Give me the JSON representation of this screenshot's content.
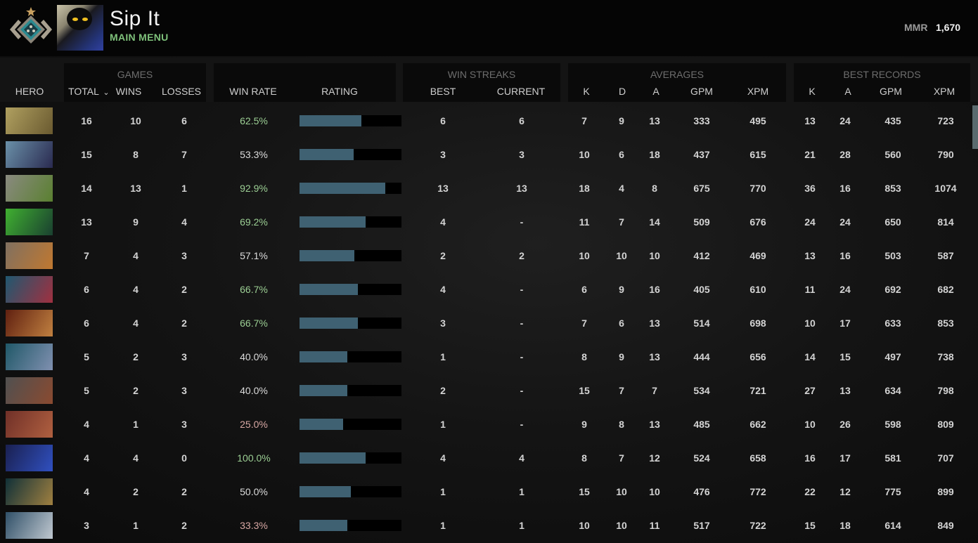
{
  "header": {
    "player_name": "Sip It",
    "subtitle": "MAIN MENU",
    "mmr_label": "MMR",
    "mmr_value": "1,670"
  },
  "groups": {
    "games": "GAMES",
    "win_streaks": "WIN STREAKS",
    "averages": "AVERAGES",
    "best_records": "BEST RECORDS"
  },
  "columns": {
    "hero": "HERO",
    "total": "TOTAL",
    "sort_icon": "chevron-down-icon",
    "wins": "WINS",
    "losses": "LOSSES",
    "win_rate": "WIN RATE",
    "rating": "RATING",
    "best": "BEST",
    "current": "CURRENT",
    "avg_k": "K",
    "avg_d": "D",
    "avg_a": "A",
    "avg_gpm": "GPM",
    "avg_xpm": "XPM",
    "best_k": "K",
    "best_a": "A",
    "best_gpm": "GPM",
    "best_xpm": "XPM"
  },
  "colors": {
    "win_high": "#9ccf94",
    "win_mid": "#dcdcdc",
    "win_low": "#d8a8a4",
    "rating_fill": "#3f6172",
    "accent": "#7ec07a"
  },
  "rows": [
    {
      "total": "16",
      "wins": "10",
      "losses": "6",
      "win_rate": "62.5%",
      "rating": 0.61,
      "best": "6",
      "current": "6",
      "k": "7",
      "d": "9",
      "a": "13",
      "gpm": "333",
      "xpm": "495",
      "bk": "13",
      "ba": "24",
      "bgpm": "435",
      "bxpm": "723",
      "portrait": [
        "#b0a060",
        "#6a5a30"
      ]
    },
    {
      "total": "15",
      "wins": "8",
      "losses": "7",
      "win_rate": "53.3%",
      "rating": 0.53,
      "best": "3",
      "current": "3",
      "k": "10",
      "d": "6",
      "a": "18",
      "gpm": "437",
      "xpm": "615",
      "bk": "21",
      "ba": "28",
      "bgpm": "560",
      "bxpm": "790",
      "portrait": [
        "#6a90a8",
        "#2a2a50"
      ]
    },
    {
      "total": "14",
      "wins": "13",
      "losses": "1",
      "win_rate": "92.9%",
      "rating": 0.84,
      "best": "13",
      "current": "13",
      "k": "18",
      "d": "4",
      "a": "8",
      "gpm": "675",
      "xpm": "770",
      "bk": "36",
      "ba": "16",
      "bgpm": "853",
      "bxpm": "1074",
      "portrait": [
        "#8a8a80",
        "#5a8030"
      ]
    },
    {
      "total": "13",
      "wins": "9",
      "losses": "4",
      "win_rate": "69.2%",
      "rating": 0.65,
      "best": "4",
      "current": "-",
      "k": "11",
      "d": "7",
      "a": "14",
      "gpm": "509",
      "xpm": "676",
      "bk": "24",
      "ba": "24",
      "bgpm": "650",
      "bxpm": "814",
      "portrait": [
        "#40b030",
        "#1a4030"
      ]
    },
    {
      "total": "7",
      "wins": "4",
      "losses": "3",
      "win_rate": "57.1%",
      "rating": 0.54,
      "best": "2",
      "current": "2",
      "k": "10",
      "d": "10",
      "a": "10",
      "gpm": "412",
      "xpm": "469",
      "bk": "13",
      "ba": "16",
      "bgpm": "503",
      "bxpm": "587",
      "portrait": [
        "#807060",
        "#c07830"
      ]
    },
    {
      "total": "6",
      "wins": "4",
      "losses": "2",
      "win_rate": "66.7%",
      "rating": 0.57,
      "best": "4",
      "current": "-",
      "k": "6",
      "d": "9",
      "a": "16",
      "gpm": "405",
      "xpm": "610",
      "bk": "11",
      "ba": "24",
      "bgpm": "692",
      "bxpm": "682",
      "portrait": [
        "#205870",
        "#a03040"
      ]
    },
    {
      "total": "6",
      "wins": "4",
      "losses": "2",
      "win_rate": "66.7%",
      "rating": 0.57,
      "best": "3",
      "current": "-",
      "k": "7",
      "d": "6",
      "a": "13",
      "gpm": "514",
      "xpm": "698",
      "bk": "10",
      "ba": "17",
      "bgpm": "633",
      "bxpm": "853",
      "portrait": [
        "#602010",
        "#c08040"
      ]
    },
    {
      "total": "5",
      "wins": "2",
      "losses": "3",
      "win_rate": "40.0%",
      "rating": 0.47,
      "best": "1",
      "current": "-",
      "k": "8",
      "d": "9",
      "a": "13",
      "gpm": "444",
      "xpm": "656",
      "bk": "14",
      "ba": "15",
      "bgpm": "497",
      "bxpm": "738",
      "portrait": [
        "#205868",
        "#8090b0"
      ]
    },
    {
      "total": "5",
      "wins": "2",
      "losses": "3",
      "win_rate": "40.0%",
      "rating": 0.47,
      "best": "2",
      "current": "-",
      "k": "15",
      "d": "7",
      "a": "7",
      "gpm": "534",
      "xpm": "721",
      "bk": "27",
      "ba": "13",
      "bgpm": "634",
      "bxpm": "798",
      "portrait": [
        "#505050",
        "#8a4a30"
      ]
    },
    {
      "total": "4",
      "wins": "1",
      "losses": "3",
      "win_rate": "25.0%",
      "rating": 0.43,
      "best": "1",
      "current": "-",
      "k": "9",
      "d": "8",
      "a": "13",
      "gpm": "485",
      "xpm": "662",
      "bk": "10",
      "ba": "26",
      "bgpm": "598",
      "bxpm": "809",
      "portrait": [
        "#703028",
        "#b06040"
      ]
    },
    {
      "total": "4",
      "wins": "4",
      "losses": "0",
      "win_rate": "100.0%",
      "rating": 0.65,
      "best": "4",
      "current": "4",
      "k": "8",
      "d": "7",
      "a": "12",
      "gpm": "524",
      "xpm": "658",
      "bk": "16",
      "ba": "17",
      "bgpm": "581",
      "bxpm": "707",
      "portrait": [
        "#1a2050",
        "#3050c0"
      ]
    },
    {
      "total": "4",
      "wins": "2",
      "losses": "2",
      "win_rate": "50.0%",
      "rating": 0.5,
      "best": "1",
      "current": "1",
      "k": "15",
      "d": "10",
      "a": "10",
      "gpm": "476",
      "xpm": "772",
      "bk": "22",
      "ba": "12",
      "bgpm": "775",
      "bxpm": "899",
      "portrait": [
        "#103038",
        "#a08040"
      ]
    },
    {
      "total": "3",
      "wins": "1",
      "losses": "2",
      "win_rate": "33.3%",
      "rating": 0.47,
      "best": "1",
      "current": "1",
      "k": "10",
      "d": "10",
      "a": "11",
      "gpm": "517",
      "xpm": "722",
      "bk": "15",
      "ba": "18",
      "bgpm": "614",
      "bxpm": "849",
      "portrait": [
        "#305068",
        "#c0c8d0"
      ]
    }
  ]
}
